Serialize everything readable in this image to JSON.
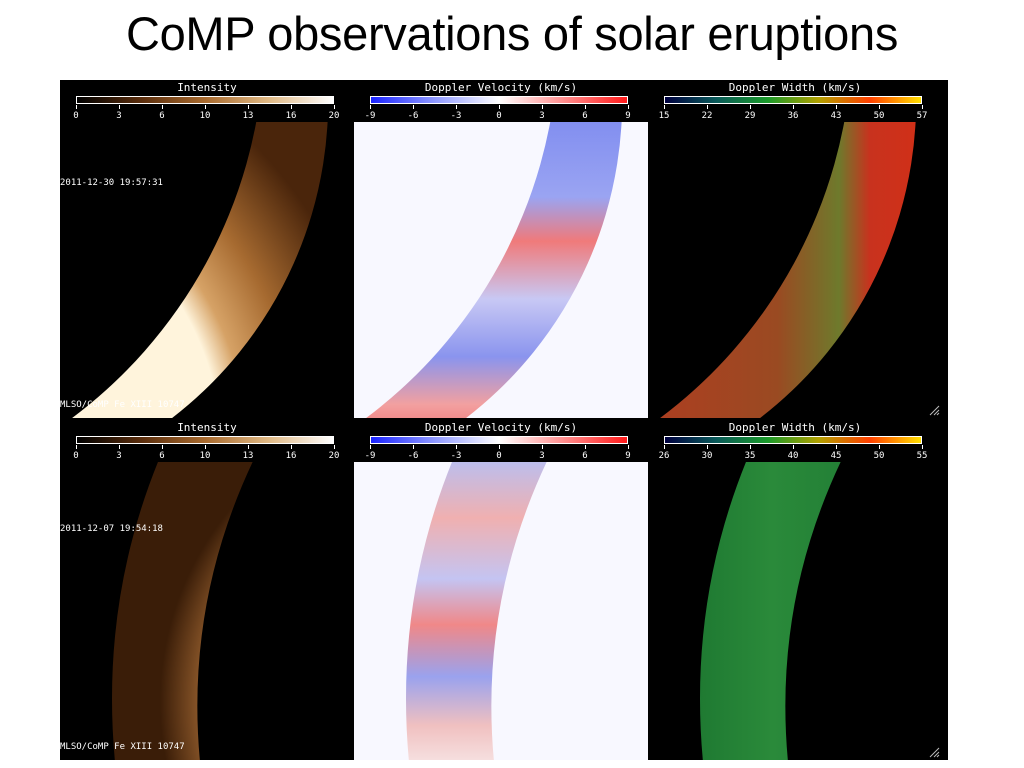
{
  "title": "CoMP observations of solar eruptions",
  "colorbars": {
    "intensity": {
      "label": "Intensity",
      "gradient": [
        "#000000",
        "#5a2d0c",
        "#a86a2e",
        "#e0b985",
        "#ffffff"
      ]
    },
    "velocity": {
      "label": "Doppler Velocity (km/s)",
      "gradient": [
        "#1a23ff",
        "#8f99ff",
        "#ffffff",
        "#ff8f8f",
        "#ff1a1a"
      ]
    },
    "width": {
      "label": "Doppler Width (km/s)",
      "gradient": [
        "#000040",
        "#0a5a5a",
        "#1a9a2a",
        "#b0a000",
        "#ff4000",
        "#ffe000"
      ]
    }
  },
  "rows": [
    {
      "date": "2011-12-30 19:57:31",
      "instrument": "MLSO/CoMP Fe XIII 10747",
      "ticks": {
        "intensity": [
          "0",
          "3",
          "6",
          "10",
          "13",
          "16",
          "20"
        ],
        "velocity": [
          "-9",
          "-6",
          "-3",
          "0",
          "3",
          "6",
          "9"
        ],
        "width": [
          "15",
          "22",
          "29",
          "36",
          "43",
          "50",
          "57"
        ]
      }
    },
    {
      "date": "2011-12-07 19:54:18",
      "instrument": "MLSO/CoMP Fe XIII 10747",
      "ticks": {
        "intensity": [
          "0",
          "3",
          "6",
          "10",
          "13",
          "16",
          "20"
        ],
        "velocity": [
          "-9",
          "-6",
          "-3",
          "0",
          "3",
          "6",
          "9"
        ],
        "width": [
          "26",
          "30",
          "35",
          "40",
          "45",
          "50",
          "55"
        ]
      }
    }
  ],
  "colors": {
    "intensity_bright": "#fff4dc",
    "intensity_mid": "#b87a3e",
    "intensity_dark": "#4a250b",
    "velocity_background": "#f8f8ff",
    "width_green": "#2a8a3a",
    "width_red": "#c8321e"
  }
}
